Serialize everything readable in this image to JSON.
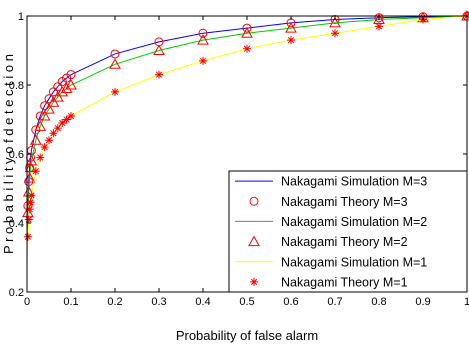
{
  "chart_data": {
    "type": "line",
    "title": "",
    "xlabel": "Probability of false alarm",
    "ylabel": "P r o b a b i l i t y  o f  d e t e c t i o n",
    "xlim": [
      0,
      1
    ],
    "ylim": [
      0.2,
      1
    ],
    "xticks": [
      "0",
      "0.1",
      "0.2",
      "0.3",
      "0.4",
      "0.5",
      "0.6",
      "0.7",
      "0.8",
      "0.9",
      "1"
    ],
    "yticks": [
      "0.2",
      "0.4",
      "0.6",
      "0.8",
      "1"
    ],
    "grid": false,
    "legend_position": "bottom-right",
    "series": [
      {
        "name": "Nakagami Simulation M=3",
        "style": "line",
        "color": "#0000ff",
        "x": [
          0,
          0.001,
          0.002,
          0.004,
          0.006,
          0.008,
          0.01,
          0.02,
          0.03,
          0.04,
          0.05,
          0.06,
          0.07,
          0.08,
          0.09,
          0.1,
          0.2,
          0.3,
          0.4,
          0.5,
          0.6,
          0.7,
          0.8,
          0.9,
          1.0
        ],
        "y": [
          0.32,
          0.4,
          0.45,
          0.52,
          0.56,
          0.59,
          0.61,
          0.67,
          0.71,
          0.74,
          0.76,
          0.78,
          0.795,
          0.81,
          0.82,
          0.83,
          0.89,
          0.925,
          0.95,
          0.965,
          0.98,
          0.99,
          0.995,
          0.998,
          1.0
        ]
      },
      {
        "name": "Nakagami Theory M=3",
        "style": "marker",
        "marker": "circle",
        "color": "#ff0000",
        "x": [
          0.002,
          0.004,
          0.006,
          0.008,
          0.01,
          0.02,
          0.03,
          0.04,
          0.05,
          0.06,
          0.07,
          0.08,
          0.09,
          0.1,
          0.2,
          0.3,
          0.4,
          0.5,
          0.6,
          0.7,
          0.8,
          0.9,
          1.0
        ],
        "y": [
          0.45,
          0.52,
          0.56,
          0.59,
          0.61,
          0.67,
          0.71,
          0.74,
          0.76,
          0.78,
          0.795,
          0.81,
          0.82,
          0.83,
          0.89,
          0.925,
          0.95,
          0.965,
          0.98,
          0.99,
          0.995,
          0.998,
          1.0
        ]
      },
      {
        "name": "Nakagami Simulation M=2",
        "style": "line",
        "color": "#00cc00",
        "x": [
          0,
          0.001,
          0.002,
          0.004,
          0.006,
          0.008,
          0.01,
          0.02,
          0.03,
          0.04,
          0.05,
          0.06,
          0.07,
          0.08,
          0.09,
          0.1,
          0.2,
          0.3,
          0.4,
          0.5,
          0.6,
          0.7,
          0.8,
          0.9,
          1.0
        ],
        "y": [
          0.3,
          0.38,
          0.43,
          0.49,
          0.53,
          0.56,
          0.58,
          0.64,
          0.68,
          0.71,
          0.73,
          0.75,
          0.765,
          0.78,
          0.79,
          0.8,
          0.86,
          0.9,
          0.93,
          0.95,
          0.965,
          0.98,
          0.99,
          0.995,
          1.0
        ]
      },
      {
        "name": "Nakagami Theory M=2",
        "style": "marker",
        "marker": "triangle",
        "color": "#ff0000",
        "x": [
          0.002,
          0.004,
          0.006,
          0.008,
          0.01,
          0.02,
          0.03,
          0.04,
          0.05,
          0.06,
          0.07,
          0.08,
          0.09,
          0.1,
          0.2,
          0.3,
          0.4,
          0.5,
          0.6,
          0.7,
          0.8,
          0.9,
          1.0
        ],
        "y": [
          0.43,
          0.49,
          0.53,
          0.56,
          0.58,
          0.64,
          0.68,
          0.71,
          0.73,
          0.75,
          0.765,
          0.78,
          0.79,
          0.8,
          0.86,
          0.9,
          0.93,
          0.95,
          0.965,
          0.98,
          0.99,
          0.995,
          1.0
        ]
      },
      {
        "name": "Nakagami Simulation M=1",
        "style": "line",
        "color": "#ffff00",
        "x": [
          0,
          0.001,
          0.002,
          0.004,
          0.006,
          0.008,
          0.01,
          0.02,
          0.03,
          0.04,
          0.05,
          0.06,
          0.07,
          0.08,
          0.09,
          0.1,
          0.2,
          0.3,
          0.4,
          0.5,
          0.6,
          0.7,
          0.8,
          0.9,
          1.0
        ],
        "y": [
          0.28,
          0.33,
          0.36,
          0.41,
          0.44,
          0.46,
          0.48,
          0.55,
          0.59,
          0.62,
          0.64,
          0.66,
          0.675,
          0.69,
          0.7,
          0.71,
          0.78,
          0.83,
          0.87,
          0.905,
          0.93,
          0.95,
          0.97,
          0.99,
          1.0
        ]
      },
      {
        "name": "Nakagami Theory M=1",
        "style": "marker",
        "marker": "star",
        "color": "#ff0000",
        "x": [
          0.002,
          0.004,
          0.006,
          0.008,
          0.01,
          0.02,
          0.03,
          0.04,
          0.05,
          0.06,
          0.07,
          0.08,
          0.09,
          0.1,
          0.2,
          0.3,
          0.4,
          0.5,
          0.6,
          0.7,
          0.8,
          0.9,
          1.0
        ],
        "y": [
          0.36,
          0.41,
          0.44,
          0.46,
          0.48,
          0.55,
          0.59,
          0.62,
          0.64,
          0.66,
          0.675,
          0.69,
          0.7,
          0.71,
          0.78,
          0.83,
          0.87,
          0.905,
          0.93,
          0.95,
          0.97,
          0.99,
          1.0
        ]
      }
    ]
  }
}
